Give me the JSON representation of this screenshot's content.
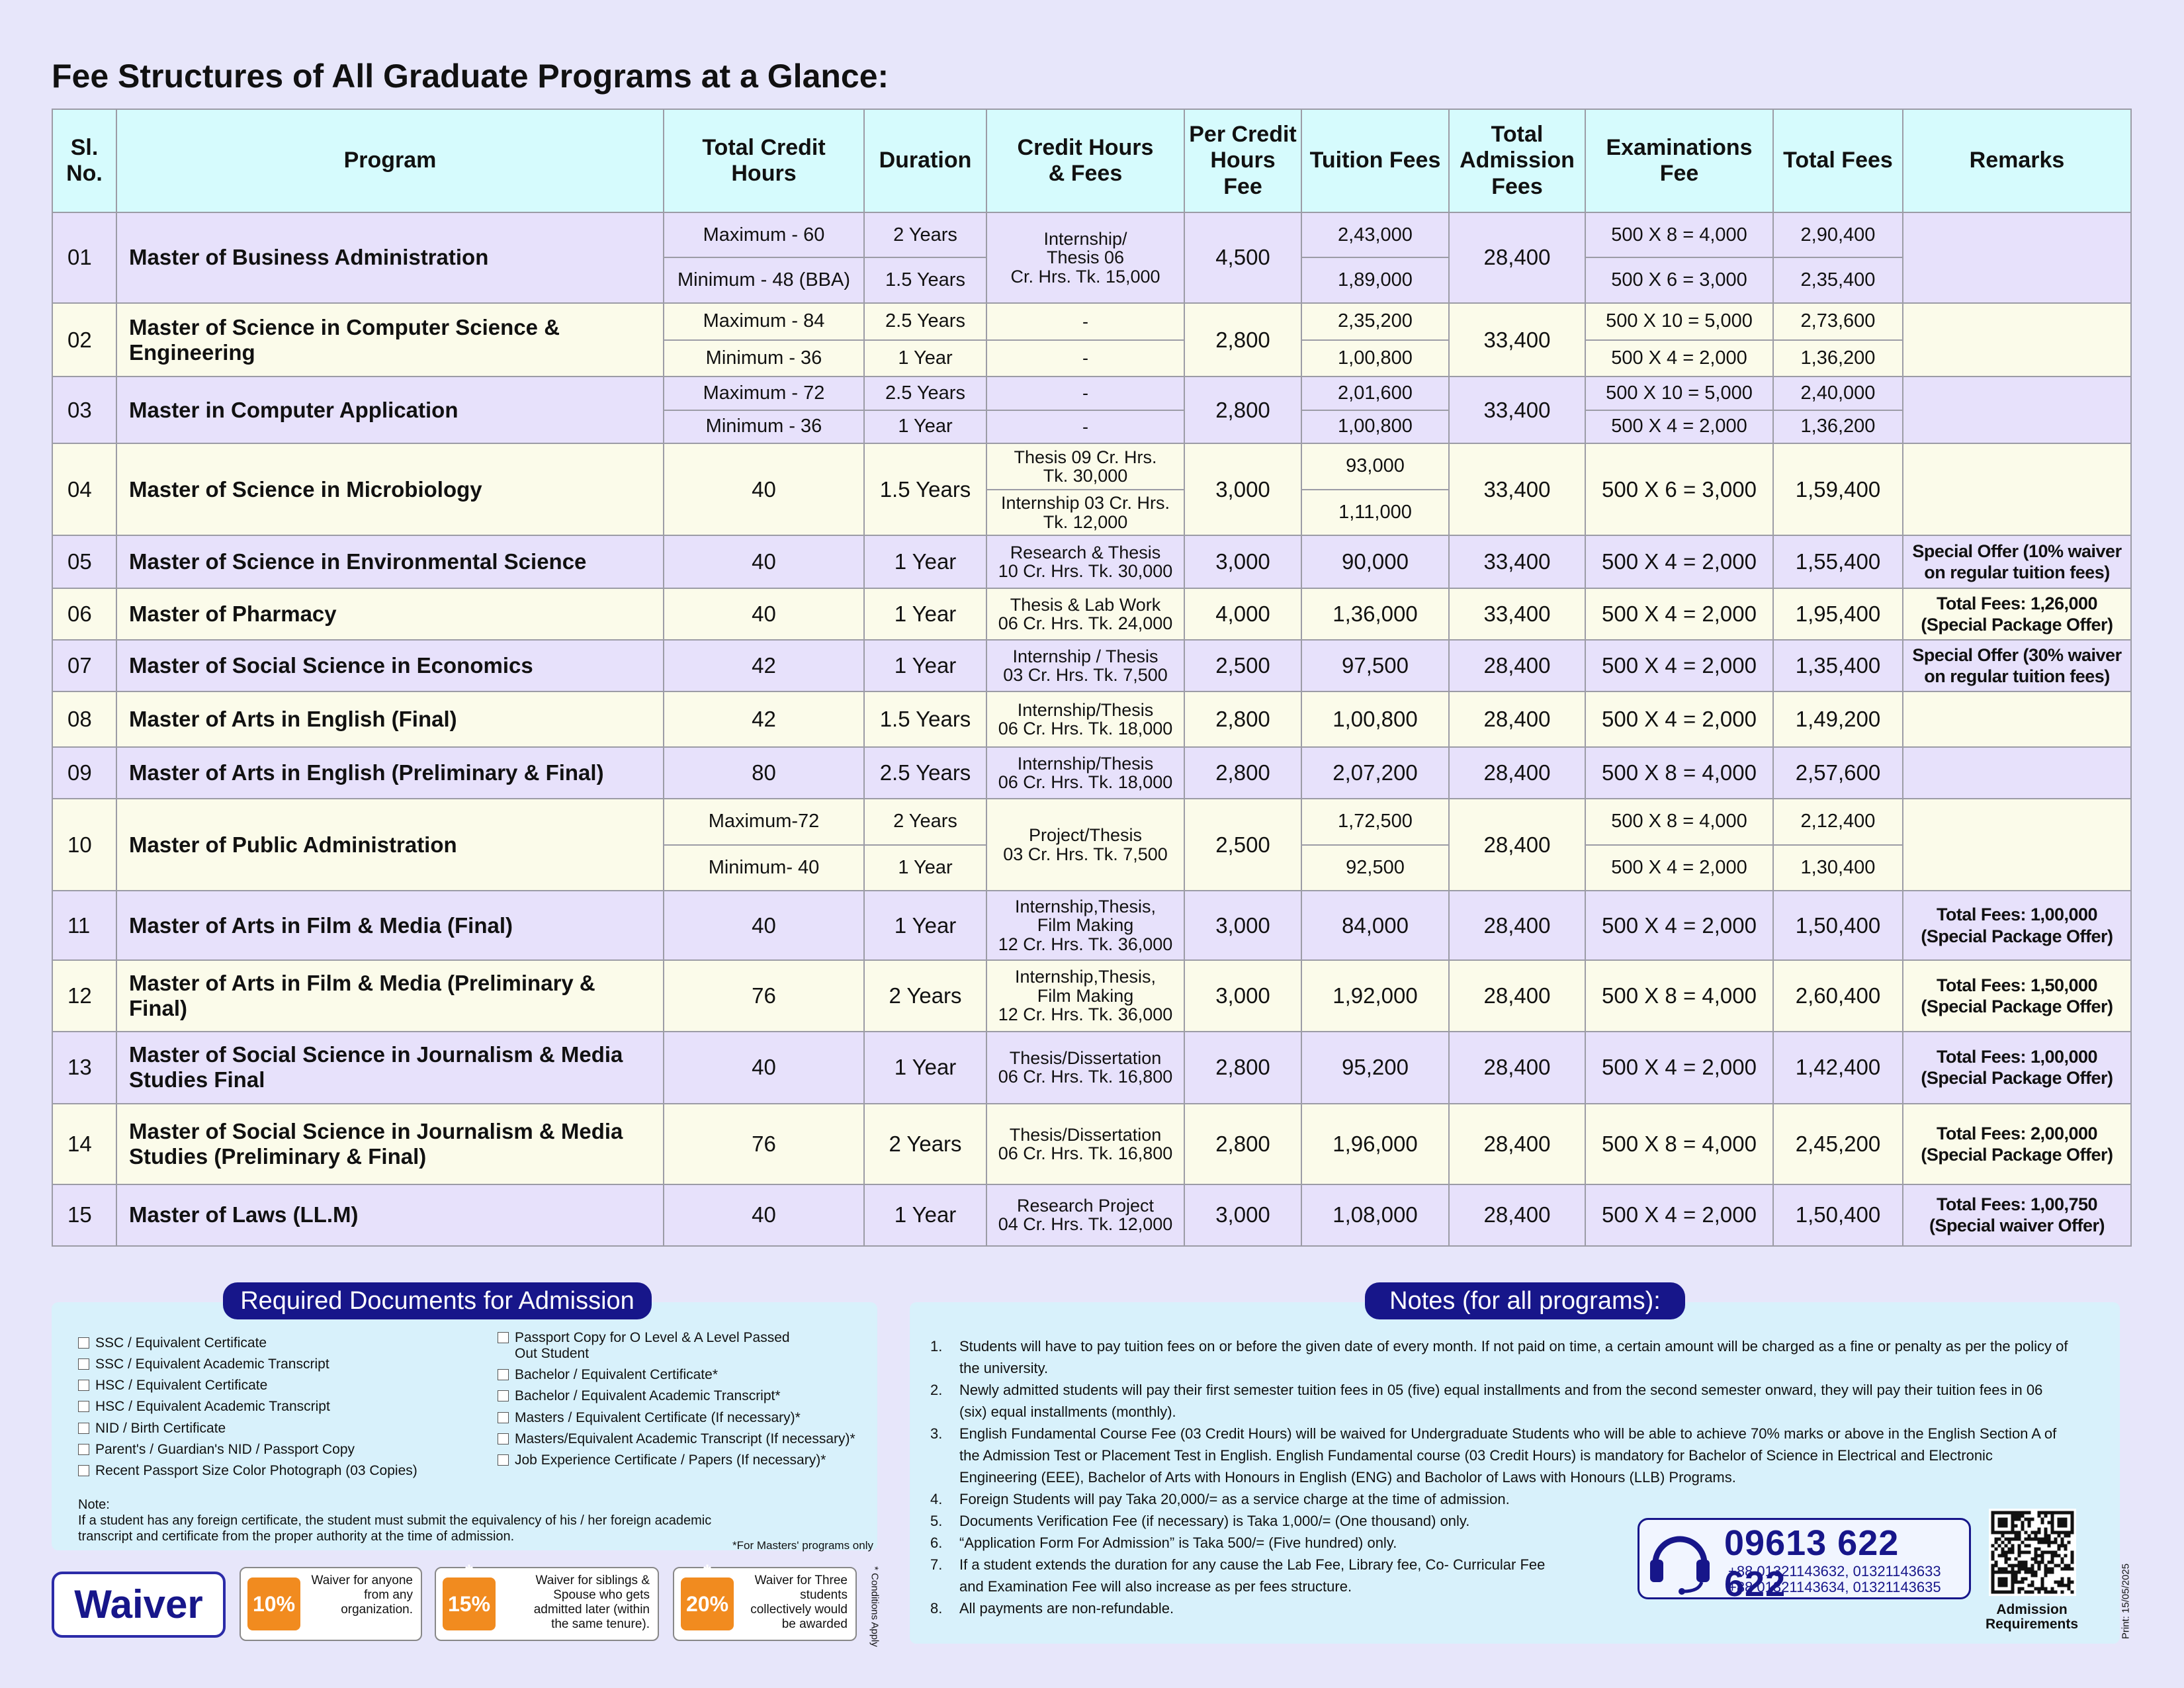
{
  "title": "Fee Structures of All Graduate Programs at a Glance:",
  "table": {
    "header": [
      "Sl.\nNo.",
      "Program",
      "Total Credit\nHours",
      "Duration",
      "Credit Hours\n& Fees",
      "Per Credit\nHours Fee",
      "Tuition Fees",
      "Total\nAdmission\nFees",
      "Examinations\nFee",
      "Total Fees",
      "Remarks"
    ],
    "rows": [
      {
        "sl": "01",
        "program": "Master of Business Administration",
        "credit_hours": [
          "Maximum - 60",
          "Minimum - 48 (BBA)"
        ],
        "duration": [
          "2 Years",
          "1.5 Years"
        ],
        "credit_fees": "Internship/\nThesis 06\nCr. Hrs. Tk. 15,000",
        "per_credit": "4,500",
        "tuition": [
          "2,43,000",
          "1,89,000"
        ],
        "admission": "28,400",
        "exam": [
          "500 X 8 = 4,000",
          "500 X 6 = 3,000"
        ],
        "total": [
          "2,90,400",
          "2,35,400"
        ]
      },
      {
        "sl": "02",
        "program": "Master of Science in Computer Science &\nEngineering",
        "credit_hours": [
          "Maximum - 84",
          "Minimum - 36"
        ],
        "duration": [
          "2.5 Years",
          "1 Year"
        ],
        "credit_fees": [
          "-",
          "-"
        ],
        "per_credit": "2,800",
        "tuition": [
          "2,35,200",
          "1,00,800"
        ],
        "admission": "33,400",
        "exam": [
          "500 X 10 = 5,000",
          "500 X 4 = 2,000"
        ],
        "total": [
          "2,73,600",
          "1,36,200"
        ]
      },
      {
        "sl": "03",
        "program": "Master in Computer Application",
        "credit_hours": [
          "Maximum - 72",
          "Minimum - 36"
        ],
        "duration": [
          "2.5 Years",
          "1 Year"
        ],
        "credit_fees": [
          "-",
          "-"
        ],
        "per_credit": "2,800",
        "tuition": [
          "2,01,600",
          "1,00,800"
        ],
        "admission": "33,400",
        "exam": [
          "500 X 10 = 5,000",
          "500 X 4 = 2,000"
        ],
        "total": [
          "2,40,000",
          "1,36,200"
        ]
      },
      {
        "sl": "04",
        "program": "Master of Science in Microbiology",
        "credit_hours": "40",
        "duration": "1.5 Years",
        "credit_fees": [
          "Thesis 09 Cr. Hrs.\nTk. 30,000",
          "Internship 03 Cr. Hrs.\nTk. 12,000"
        ],
        "per_credit": "3,000",
        "tuition": [
          "93,000",
          "1,11,000"
        ],
        "admission": "33,400",
        "exam": "500 X 6 = 3,000",
        "total": "1,59,400"
      },
      {
        "sl": "05",
        "program": "Master of Science in Environmental Science",
        "credit_hours": "40",
        "duration": "1 Year",
        "credit_fees": "Research & Thesis\n10 Cr. Hrs. Tk. 30,000",
        "per_credit": "3,000",
        "tuition": "90,000",
        "admission": "33,400",
        "exam": "500 X 4 = 2,000",
        "total": "1,55,400",
        "remarks": "Special Offer (10% waiver\non regular tuition fees)"
      },
      {
        "sl": "06",
        "program": "Master of Pharmacy",
        "credit_hours": "40",
        "duration": "1 Year",
        "credit_fees": "Thesis & Lab Work\n06 Cr. Hrs. Tk. 24,000",
        "per_credit": "4,000",
        "tuition": "1,36,000",
        "admission": "33,400",
        "exam": "500 X 4 = 2,000",
        "total": "1,95,400",
        "remarks": "Total Fees: 1,26,000\n(Special Package Offer)"
      },
      {
        "sl": "07",
        "program": "Master of Social Science in Economics",
        "credit_hours": "42",
        "duration": "1 Year",
        "credit_fees": "Internship / Thesis\n03 Cr. Hrs. Tk. 7,500",
        "per_credit": "2,500",
        "tuition": "97,500",
        "admission": "28,400",
        "exam": "500 X 4 = 2,000",
        "total": "1,35,400",
        "remarks": "Special Offer (30% waiver\non regular tuition fees)"
      },
      {
        "sl": "08",
        "program": "Master of Arts in English (Final)",
        "credit_hours": "42",
        "duration": "1.5 Years",
        "credit_fees": "Internship/Thesis\n06 Cr. Hrs. Tk. 18,000",
        "per_credit": "2,800",
        "tuition": "1,00,800",
        "admission": "28,400",
        "exam": "500 X 4 = 2,000",
        "total": "1,49,200"
      },
      {
        "sl": "09",
        "program": "Master of Arts in English (Preliminary & Final)",
        "credit_hours": "80",
        "duration": "2.5 Years",
        "credit_fees": "Internship/Thesis\n06 Cr. Hrs. Tk. 18,000",
        "per_credit": "2,800",
        "tuition": "2,07,200",
        "admission": "28,400",
        "exam": "500 X 8 = 4,000",
        "total": "2,57,600"
      },
      {
        "sl": "10",
        "program": "Master of Public Administration",
        "credit_hours": [
          "Maximum-72",
          "Minimum- 40"
        ],
        "duration": [
          "2 Years",
          "1 Year"
        ],
        "credit_fees": "Project/Thesis\n03 Cr. Hrs. Tk. 7,500",
        "per_credit": "2,500",
        "tuition": [
          "1,72,500",
          "92,500"
        ],
        "admission": "28,400",
        "exam": [
          "500 X 8 = 4,000",
          "500 X 4 = 2,000"
        ],
        "total": [
          "2,12,400",
          "1,30,400"
        ]
      },
      {
        "sl": "11",
        "program": "Master of Arts in Film & Media (Final)",
        "credit_hours": "40",
        "duration": "1 Year",
        "credit_fees": "Internship,Thesis,\nFilm Making\n12 Cr. Hrs. Tk. 36,000",
        "per_credit": "3,000",
        "tuition": "84,000",
        "admission": "28,400",
        "exam": "500 X 4 = 2,000",
        "total": "1,50,400",
        "remarks": "Total Fees: 1,00,000\n(Special Package Offer)"
      },
      {
        "sl": "12",
        "program": "Master of Arts in Film & Media (Preliminary & Final)",
        "credit_hours": "76",
        "duration": "2 Years",
        "credit_fees": "Internship,Thesis,\nFilm Making\n12 Cr. Hrs. Tk. 36,000",
        "per_credit": "3,000",
        "tuition": "1,92,000",
        "admission": "28,400",
        "exam": "500 X 8 = 4,000",
        "total": "2,60,400",
        "remarks": "Total Fees: 1,50,000\n(Special Package Offer)"
      },
      {
        "sl": "13",
        "program": "Master of Social Science in Journalism & Media\nStudies Final",
        "credit_hours": "40",
        "duration": "1 Year",
        "credit_fees": "Thesis/Dissertation\n06 Cr. Hrs. Tk. 16,800",
        "per_credit": "2,800",
        "tuition": "95,200",
        "admission": "28,400",
        "exam": "500 X 4 = 2,000",
        "total": "1,42,400",
        "remarks": "Total Fees: 1,00,000\n(Special Package Offer)"
      },
      {
        "sl": "14",
        "program": "Master of Social Science in Journalism & Media\nStudies (Preliminary & Final)",
        "credit_hours": "76",
        "duration": "2 Years",
        "credit_fees": "Thesis/Dissertation\n06 Cr. Hrs. Tk. 16,800",
        "per_credit": "2,800",
        "tuition": "1,96,000",
        "admission": "28,400",
        "exam": "500 X 8 = 4,000",
        "total": "2,45,200",
        "remarks": "Total Fees: 2,00,000\n(Special Package Offer)"
      },
      {
        "sl": "15",
        "program": "Master of Laws (LL.M)",
        "credit_hours": "40",
        "duration": "1 Year",
        "credit_fees": "Research Project\n04 Cr. Hrs. Tk. 12,000",
        "per_credit": "3,000",
        "tuition": "1,08,000",
        "admission": "28,400",
        "exam": "500 X 4 = 2,000",
        "total": "1,50,400",
        "remarks": "Total Fees: 1,00,750\n(Special waiver Offer)"
      }
    ]
  },
  "documents": {
    "title": "Required Documents for Admission",
    "column_1": [
      "SSC / Equivalent Certificate",
      "SSC / Equivalent Academic Transcript",
      "HSC / Equivalent Certificate",
      "HSC / Equivalent Academic Transcript",
      "NID / Birth Certificate",
      "Parent's / Guardian's NID / Passport Copy",
      "Recent Passport Size Color Photograph (03 Copies)"
    ],
    "column_2": [
      "Passport Copy for O Level & A Level Passed\nOut Student",
      "Bachelor / Equivalent Certificate*",
      "Bachelor / Equivalent Academic Transcript*",
      "Masters / Equivalent Certificate (If necessary)*",
      "Masters/Equivalent Academic Transcript (If necessary)*",
      "Job Experience Certificate / Papers (If necessary)*"
    ],
    "note_label": "Note:",
    "note": "If a student has any foreign certificate, the student must submit the equivalency of his / her foreign academic\ntranscript and certificate from the proper authority at the time of admission.",
    "footnote": "*For Masters' programs only"
  },
  "waiver": {
    "title": "Waiver",
    "offers": [
      {
        "percent": "10%",
        "text": "Waiver for anyone\nfrom any\norganization."
      },
      {
        "percent": "15%",
        "mark": "*",
        "text": "Waiver for siblings  &\nSpouse who gets\nadmitted later (within\nthe same tenure)."
      },
      {
        "percent": "20%",
        "mark": "*",
        "text": "Waiver for Three\nstudents\ncollectively would\nbe awarded"
      }
    ],
    "condition": "* Conditions Apply"
  },
  "notes": {
    "title": "Notes (for all programs):",
    "items": [
      {
        "number": "1.",
        "text": "Students will have to pay tuition fees on or before the given date of every month. If not paid on time, a certain amount will be charged as a fine or penalty as per the policy of the university."
      },
      {
        "number": "2.",
        "text": "Newly admitted students will pay their first semester tuition fees in 05 (five) equal installments and from the second semester onward, they will pay their tuition fees in 06 (six) equal installments (monthly)."
      },
      {
        "number": "3.",
        "text": "English Fundamental Course Fee (03 Credit Hours) will be waived for Undergraduate Students who will be able to achieve 70% marks or above in the English Section A of the Admission Test or Placement Test in English. English Fundamental course (03 Credit Hours) is mandatory for Bachelor of  Science in Electrical and Electronic Engineering (EEE), Bachelor of Arts with Honours in English (ENG) and Bacholor of Laws with Honours (LLB) Programs."
      },
      {
        "number": "4.",
        "text": "Foreign Students will pay Taka 20,000/= as a service charge at the time of admission."
      },
      {
        "number": "5.",
        "text": "Documents Verification Fee (if necessary) is Taka 1,000/= (One thousand) only."
      },
      {
        "number": "6.",
        "text": "“Application Form For Admission” is Taka 500/= (Five hundred) only."
      },
      {
        "number": "7.",
        "text": "If a student extends the duration for any cause the Lab Fee, Library fee, Co- Curricular Fee and Examination Fee will also increase as per fees structure."
      },
      {
        "number": "8.",
        "text": "All payments are non-refundable."
      }
    ]
  },
  "contact": {
    "phone": "09613 622 622",
    "lines": [
      "+88 01321143632, 01321143633",
      "+88 01321143634, 01321143635"
    ]
  },
  "qr_caption": "Admission\nRequirements",
  "print": "Print: 15/05/2025"
}
